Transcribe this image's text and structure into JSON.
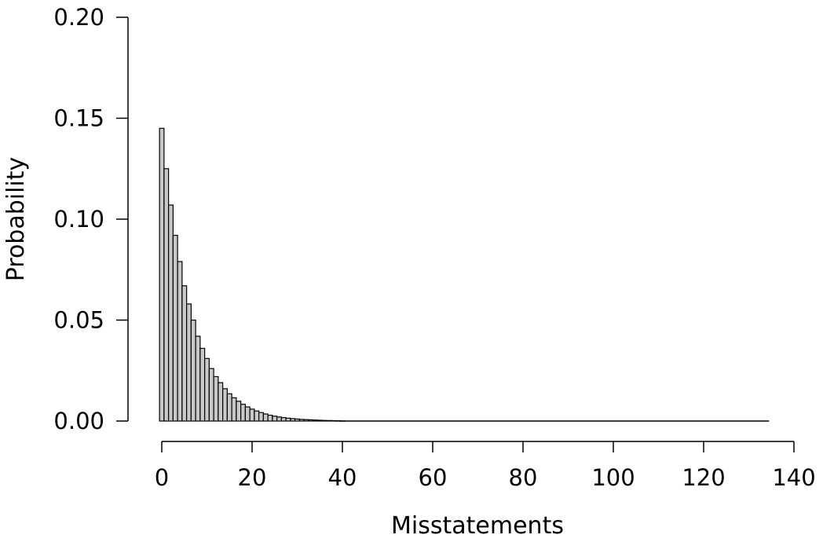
{
  "colors": {
    "bar_fill": "#c8c8c8",
    "bar_stroke": "#000000"
  },
  "chart_data": {
    "type": "bar",
    "xlabel": "Misstatements",
    "ylabel": "Probability",
    "xlim": [
      0,
      140
    ],
    "ylim": [
      0,
      0.2
    ],
    "xticks": [
      0,
      20,
      40,
      60,
      80,
      100,
      120,
      140
    ],
    "yticks": [
      0.0,
      0.05,
      0.1,
      0.15,
      0.2
    ],
    "xtick_labels": [
      "0",
      "20",
      "40",
      "60",
      "80",
      "100",
      "120",
      "140"
    ],
    "ytick_labels": [
      "0.00",
      "0.05",
      "0.10",
      "0.15",
      "0.20"
    ],
    "x": [
      0,
      1,
      2,
      3,
      4,
      5,
      6,
      7,
      8,
      9,
      10,
      11,
      12,
      13,
      14,
      15,
      16,
      17,
      18,
      19,
      20,
      21,
      22,
      23,
      24,
      25,
      26,
      27,
      28,
      29,
      30,
      31,
      32,
      33,
      34,
      35,
      36,
      37,
      38,
      39,
      40
    ],
    "values": [
      0.145,
      0.125,
      0.107,
      0.092,
      0.079,
      0.067,
      0.058,
      0.05,
      0.042,
      0.036,
      0.031,
      0.026,
      0.022,
      0.019,
      0.016,
      0.0135,
      0.0115,
      0.0098,
      0.0083,
      0.007,
      0.0059,
      0.005,
      0.0042,
      0.0035,
      0.0029,
      0.0024,
      0.002,
      0.0017,
      0.0014,
      0.0012,
      0.001,
      0.0008,
      0.0007,
      0.0006,
      0.0005,
      0.0004,
      0.0003,
      0.00025,
      0.0002,
      0.00015,
      0.0001
    ],
    "tail_end": 134.5
  }
}
